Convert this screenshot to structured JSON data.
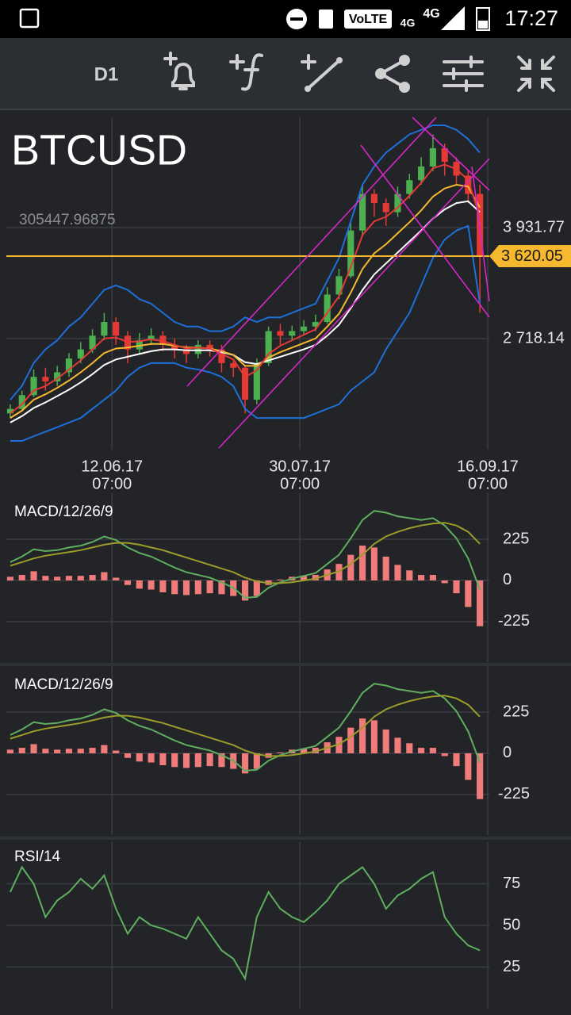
{
  "status_bar": {
    "time": "17:27",
    "badge": "VoLTE",
    "network": [
      "4G",
      "4G"
    ]
  },
  "toolbar": {
    "timeframe": "D1"
  },
  "chart_data": [
    {
      "type": "candlestick",
      "title": "BTCUSD",
      "subtitle": "305447.96875",
      "x": [
        "2017-05-17",
        "2017-05-20",
        "2017-05-23",
        "2017-05-26",
        "2017-05-29",
        "2017-06-01",
        "2017-06-04",
        "2017-06-07",
        "2017-06-10",
        "2017-06-13",
        "2017-06-16",
        "2017-06-19",
        "2017-06-22",
        "2017-06-25",
        "2017-06-28",
        "2017-07-01",
        "2017-07-04",
        "2017-07-07",
        "2017-07-10",
        "2017-07-13",
        "2017-07-16",
        "2017-07-19",
        "2017-07-22",
        "2017-07-25",
        "2017-07-28",
        "2017-07-31",
        "2017-08-03",
        "2017-08-06",
        "2017-08-09",
        "2017-08-12",
        "2017-08-15",
        "2017-08-18",
        "2017-08-21",
        "2017-08-24",
        "2017-08-27",
        "2017-08-30",
        "2017-09-02",
        "2017-09-05",
        "2017-09-08",
        "2017-09-11",
        "2017-09-14"
      ],
      "open": [
        1900,
        1950,
        2100,
        2300,
        2250,
        2350,
        2500,
        2600,
        2750,
        2900,
        2750,
        2600,
        2700,
        2750,
        2650,
        2600,
        2550,
        2650,
        2600,
        2450,
        2400,
        2050,
        2450,
        2800,
        2750,
        2800,
        2850,
        2900,
        3200,
        3400,
        3900,
        4300,
        4200,
        4100,
        4300,
        4450,
        4600,
        4800,
        4650,
        4500,
        4300
      ],
      "high": [
        2000,
        2150,
        2380,
        2400,
        2420,
        2560,
        2680,
        2820,
        3000,
        2950,
        2800,
        2780,
        2830,
        2800,
        2720,
        2650,
        2700,
        2700,
        2650,
        2500,
        2420,
        2500,
        2850,
        2880,
        2860,
        2920,
        2980,
        3280,
        3480,
        4000,
        4400,
        4350,
        4250,
        4380,
        4520,
        4700,
        4950,
        4850,
        4700,
        4550,
        4400
      ],
      "low": [
        1850,
        1920,
        2080,
        2150,
        2200,
        2300,
        2450,
        2560,
        2700,
        2650,
        2450,
        2550,
        2650,
        2580,
        2500,
        2450,
        2500,
        2520,
        2350,
        2300,
        1900,
        2000,
        2420,
        2650,
        2700,
        2750,
        2800,
        2880,
        3150,
        3380,
        3850,
        4050,
        3950,
        4050,
        4250,
        4400,
        4550,
        4500,
        4400,
        4200,
        3000
      ],
      "close": [
        1950,
        2100,
        2300,
        2250,
        2350,
        2500,
        2600,
        2750,
        2900,
        2750,
        2600,
        2700,
        2750,
        2650,
        2600,
        2550,
        2650,
        2600,
        2450,
        2400,
        2050,
        2450,
        2800,
        2750,
        2800,
        2850,
        2900,
        3200,
        3400,
        3900,
        4300,
        4200,
        4100,
        4300,
        4450,
        4600,
        4800,
        4650,
        4500,
        4300,
        3620
      ],
      "up_color": "#4caf50",
      "down_color": "#e53935",
      "lines": [
        {
          "color": "#1e6fd9",
          "values": [
            2050,
            2200,
            2450,
            2600,
            2700,
            2850,
            2950,
            3100,
            3250,
            3300,
            3250,
            3150,
            3100,
            3000,
            2900,
            2850,
            2850,
            2800,
            2800,
            2850,
            2950,
            2900,
            2950,
            2950,
            3000,
            3050,
            3100,
            3350,
            3600,
            4000,
            4400,
            4600,
            4750,
            4850,
            4950,
            5000,
            5050,
            5050,
            5000,
            4900,
            4750
          ]
        },
        {
          "color": "#1e6fd9",
          "values": [
            1600,
            1600,
            1650,
            1700,
            1750,
            1800,
            1850,
            1950,
            2050,
            2150,
            2300,
            2400,
            2450,
            2450,
            2450,
            2400,
            2380,
            2350,
            2300,
            2200,
            1950,
            1850,
            1850,
            1850,
            1850,
            1850,
            1900,
            1950,
            2000,
            2150,
            2250,
            2350,
            2600,
            2800,
            3000,
            3300,
            3600,
            3800,
            3900,
            3950,
            3100
          ]
        },
        {
          "color": "#ffffff",
          "values": [
            1800,
            1870,
            1960,
            2020,
            2090,
            2160,
            2240,
            2330,
            2430,
            2490,
            2520,
            2550,
            2580,
            2600,
            2600,
            2590,
            2590,
            2590,
            2570,
            2540,
            2460,
            2440,
            2480,
            2520,
            2560,
            2600,
            2650,
            2750,
            2870,
            3050,
            3250,
            3420,
            3540,
            3660,
            3780,
            3900,
            4030,
            4130,
            4200,
            4220,
            4100
          ]
        },
        {
          "color": "#f5b82e",
          "values": [
            1850,
            1930,
            2050,
            2110,
            2180,
            2260,
            2350,
            2450,
            2560,
            2610,
            2620,
            2640,
            2660,
            2660,
            2640,
            2620,
            2620,
            2610,
            2580,
            2540,
            2420,
            2420,
            2510,
            2570,
            2620,
            2670,
            2720,
            2850,
            2990,
            3220,
            3480,
            3650,
            3750,
            3870,
            3990,
            4120,
            4270,
            4360,
            4400,
            4380,
            4150
          ]
        },
        {
          "color": "#e53935",
          "values": [
            1900,
            2000,
            2150,
            2200,
            2280,
            2380,
            2480,
            2600,
            2720,
            2730,
            2680,
            2690,
            2710,
            2690,
            2650,
            2610,
            2620,
            2610,
            2550,
            2490,
            2300,
            2370,
            2550,
            2640,
            2700,
            2760,
            2820,
            3000,
            3180,
            3500,
            3850,
            4000,
            4050,
            4150,
            4280,
            4420,
            4580,
            4620,
            4570,
            4450,
            4050
          ]
        }
      ],
      "price_line": {
        "value": 3620.05,
        "label": "3 620.05",
        "color": "#f5b82e"
      },
      "xlim": [
        "2017-05-16",
        "2017-09-16"
      ],
      "xticks": [
        {
          "value": "2017-06-12",
          "label": [
            "12.06.17",
            "07:00"
          ]
        },
        {
          "value": "2017-07-30",
          "label": [
            "30.07.17",
            "07:00"
          ]
        },
        {
          "value": "2017-09-16",
          "label": [
            "16.09.17",
            "07:00"
          ]
        }
      ],
      "ylim": [
        1504.5,
        5136.8
      ],
      "yticks": [
        {
          "value": 2718.14,
          "label": "2 718.14"
        },
        {
          "value": 3931.77,
          "label": "3 931.77"
        }
      ],
      "grid": true
    },
    {
      "type": "macd",
      "title": "MACD/12/26/9",
      "lines": [
        {
          "color": "#5fae5f",
          "values": [
            100,
            130,
            170,
            160,
            165,
            180,
            190,
            210,
            240,
            220,
            180,
            150,
            130,
            100,
            70,
            45,
            30,
            15,
            -10,
            -40,
            -95,
            -90,
            -40,
            -10,
            10,
            25,
            40,
            90,
            140,
            230,
            330,
            380,
            370,
            350,
            340,
            330,
            340,
            300,
            230,
            120,
            -50
          ]
        },
        {
          "color": "#9c9c2a",
          "values": [
            80,
            100,
            120,
            135,
            145,
            155,
            165,
            180,
            195,
            205,
            205,
            195,
            180,
            165,
            145,
            125,
            105,
            85,
            65,
            45,
            15,
            -5,
            -15,
            -15,
            -10,
            0,
            10,
            30,
            50,
            90,
            140,
            200,
            240,
            265,
            285,
            300,
            310,
            315,
            300,
            265,
            200
          ]
        }
      ],
      "histogram": {
        "color": "#ef7b7b",
        "values": [
          20,
          30,
          50,
          25,
          20,
          25,
          25,
          30,
          45,
          15,
          -25,
          -45,
          -50,
          -65,
          -75,
          -80,
          -75,
          -70,
          -75,
          -85,
          -110,
          -85,
          -25,
          5,
          20,
          25,
          30,
          60,
          90,
          140,
          190,
          180,
          130,
          85,
          55,
          30,
          30,
          -15,
          -70,
          -145,
          -250
        ]
      },
      "ylim": [
        -446,
        476
      ],
      "yticks": [
        225,
        0,
        -225
      ],
      "grid": true
    },
    {
      "type": "macd",
      "title": "MACD/12/26/9",
      "lines": [
        {
          "color": "#5fae5f",
          "values": [
            100,
            130,
            170,
            160,
            165,
            180,
            190,
            210,
            240,
            220,
            180,
            150,
            130,
            100,
            70,
            45,
            30,
            15,
            -10,
            -40,
            -95,
            -90,
            -40,
            -10,
            10,
            25,
            40,
            90,
            140,
            230,
            330,
            380,
            370,
            350,
            340,
            330,
            340,
            300,
            230,
            120,
            -50
          ]
        },
        {
          "color": "#9c9c2a",
          "values": [
            80,
            100,
            120,
            135,
            145,
            155,
            165,
            180,
            195,
            205,
            205,
            195,
            180,
            165,
            145,
            125,
            105,
            85,
            65,
            45,
            15,
            -5,
            -15,
            -15,
            -10,
            0,
            10,
            30,
            50,
            90,
            140,
            200,
            240,
            265,
            285,
            300,
            310,
            315,
            300,
            265,
            200
          ]
        }
      ],
      "histogram": {
        "color": "#ef7b7b",
        "values": [
          20,
          30,
          50,
          25,
          20,
          25,
          25,
          30,
          45,
          15,
          -25,
          -45,
          -50,
          -65,
          -75,
          -80,
          -75,
          -70,
          -75,
          -85,
          -110,
          -85,
          -25,
          5,
          20,
          25,
          30,
          60,
          90,
          140,
          190,
          180,
          130,
          85,
          55,
          30,
          30,
          -15,
          -70,
          -145,
          -250
        ]
      },
      "ylim": [
        -446,
        476
      ],
      "yticks": [
        225,
        0,
        -225
      ],
      "grid": true
    },
    {
      "type": "rsi",
      "title": "RSI/14",
      "lines": [
        {
          "color": "#5fae5f",
          "values": [
            70,
            85,
            75,
            55,
            65,
            70,
            78,
            72,
            80,
            60,
            45,
            55,
            50,
            48,
            45,
            42,
            55,
            45,
            35,
            30,
            18,
            55,
            70,
            60,
            55,
            52,
            58,
            65,
            75,
            80,
            85,
            75,
            60,
            68,
            72,
            78,
            82,
            55,
            45,
            38,
            35
          ]
        }
      ],
      "ylim": [
        0,
        100
      ],
      "yticks": [
        75,
        50,
        25
      ],
      "grid": true
    }
  ]
}
